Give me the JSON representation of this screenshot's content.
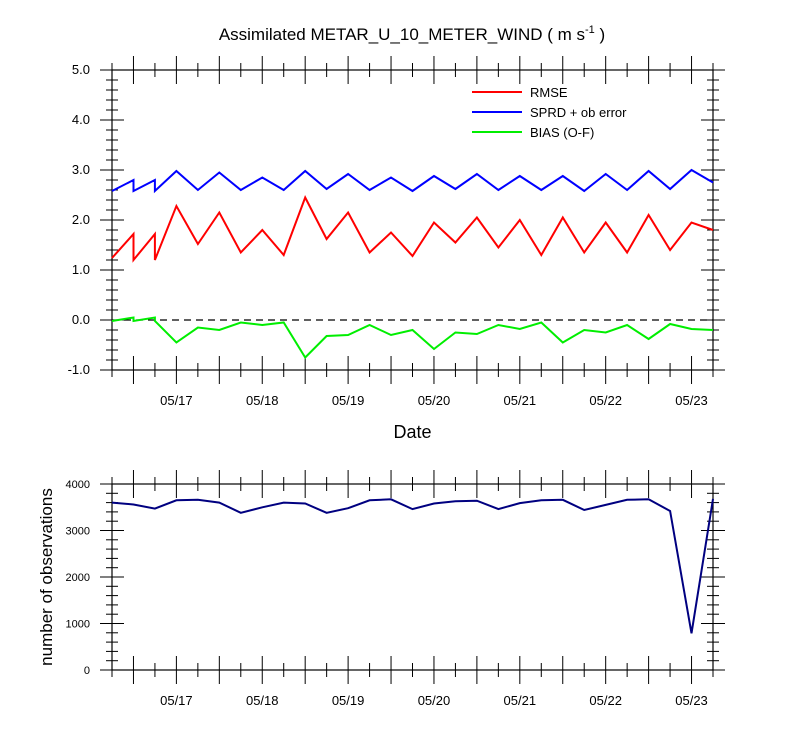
{
  "chart_data": [
    {
      "type": "line",
      "title": "Assimilated METAR_U_10_METER_WIND ( m s",
      "title_superscript": "-1",
      "title_close": " )",
      "xlabel": "Date",
      "ylabel": "",
      "ylim": [
        -1,
        5
      ],
      "yticks": [
        "-1.0",
        "0.0",
        "1.0",
        "2.0",
        "3.0",
        "4.0",
        "5.0"
      ],
      "xticks": [
        "05/17",
        "05/18",
        "05/19",
        "05/20",
        "05/21",
        "05/22",
        "05/23"
      ],
      "xlim": [
        "05/16 06:00",
        "05/23 06:00"
      ],
      "zero_line": {
        "value": 0,
        "style": "dashed"
      },
      "legend_position": "top-right",
      "x": [
        "05/16 06:00",
        "05/16 12:00",
        "05/16 12:00",
        "05/16 18:00",
        "05/16 18:00",
        "05/17 00:00",
        "05/17 06:00",
        "05/17 06:00",
        "05/17 12:00",
        "05/17 18:00",
        "05/17 18:00",
        "05/18 00:00",
        "05/18 06:00",
        "05/18 06:00",
        "05/18 12:00",
        "05/18 18:00",
        "05/18 18:00",
        "05/19 00:00",
        "05/19 06:00",
        "05/19 06:00",
        "05/19 12:00",
        "05/19 18:00",
        "05/19 18:00",
        "05/20 00:00",
        "05/20 06:00",
        "05/20 06:00",
        "05/20 12:00",
        "05/20 18:00",
        "05/20 18:00",
        "05/21 00:00",
        "05/21 06:00",
        "05/21 06:00",
        "05/21 12:00",
        "05/21 18:00",
        "05/21 18:00",
        "05/22 00:00",
        "05/22 06:00",
        "05/22 06:00",
        "05/22 12:00",
        "05/22 18:00",
        "05/22 18:00",
        "05/23 00:00",
        "05/23 06:00"
      ],
      "series": [
        {
          "name": "RMSE",
          "color": "#ff0000",
          "values": [
            1.24,
            1.72,
            1.2,
            1.72,
            1.2,
            2.28,
            1.52,
            1.52,
            2.15,
            1.35,
            1.35,
            1.8,
            1.3,
            1.3,
            2.45,
            1.62,
            1.62,
            2.15,
            1.35,
            1.35,
            1.75,
            1.28,
            1.28,
            1.95,
            1.55,
            1.55,
            2.05,
            1.45,
            1.45,
            2.0,
            1.3,
            1.3,
            2.05,
            1.35,
            1.35,
            1.95,
            1.35,
            1.35,
            2.1,
            1.4,
            1.4,
            1.95,
            1.8
          ]
        },
        {
          "name": "SPRD + ob error",
          "color": "#0000ff",
          "values": [
            2.58,
            2.8,
            2.58,
            2.8,
            2.58,
            2.98,
            2.6,
            2.6,
            2.95,
            2.6,
            2.6,
            2.85,
            2.6,
            2.6,
            2.98,
            2.62,
            2.62,
            2.92,
            2.6,
            2.6,
            2.85,
            2.58,
            2.58,
            2.88,
            2.62,
            2.62,
            2.92,
            2.6,
            2.6,
            2.88,
            2.6,
            2.6,
            2.88,
            2.58,
            2.58,
            2.92,
            2.6,
            2.6,
            2.98,
            2.62,
            2.62,
            3.0,
            2.75
          ]
        },
        {
          "name": "BIAS (O-F)",
          "color": "#00ee00",
          "values": [
            -0.02,
            0.05,
            -0.02,
            0.05,
            -0.02,
            -0.45,
            -0.15,
            -0.15,
            -0.2,
            -0.05,
            -0.05,
            -0.1,
            -0.05,
            -0.05,
            -0.75,
            -0.32,
            -0.32,
            -0.3,
            -0.1,
            -0.1,
            -0.3,
            -0.2,
            -0.2,
            -0.58,
            -0.25,
            -0.25,
            -0.28,
            -0.1,
            -0.1,
            -0.18,
            -0.05,
            -0.05,
            -0.45,
            -0.2,
            -0.2,
            -0.25,
            -0.1,
            -0.1,
            -0.38,
            -0.08,
            -0.08,
            -0.18,
            -0.2
          ]
        }
      ]
    },
    {
      "type": "line",
      "title": "",
      "xlabel": "",
      "ylabel": "number of observations",
      "ylim": [
        0,
        4000
      ],
      "yticks": [
        "0",
        "1000",
        "2000",
        "3000",
        "4000"
      ],
      "xticks": [
        "05/17",
        "05/18",
        "05/19",
        "05/20",
        "05/21",
        "05/22",
        "05/23"
      ],
      "xlim": [
        "05/16 06:00",
        "05/23 06:00"
      ],
      "x": [
        "05/16 06:00",
        "05/16 12:00",
        "05/16 18:00",
        "05/17 00:00",
        "05/17 06:00",
        "05/17 12:00",
        "05/17 18:00",
        "05/18 00:00",
        "05/18 06:00",
        "05/18 12:00",
        "05/18 18:00",
        "05/19 00:00",
        "05/19 06:00",
        "05/19 12:00",
        "05/19 18:00",
        "05/20 00:00",
        "05/20 06:00",
        "05/20 12:00",
        "05/20 18:00",
        "05/21 00:00",
        "05/21 06:00",
        "05/21 12:00",
        "05/21 18:00",
        "05/22 00:00",
        "05/22 06:00",
        "05/22 12:00",
        "05/22 18:00",
        "05/23 00:00",
        "05/23 06:00"
      ],
      "series": [
        {
          "color": "#000080",
          "values": [
            3600,
            3560,
            3470,
            3650,
            3660,
            3600,
            3380,
            3500,
            3600,
            3580,
            3380,
            3480,
            3650,
            3670,
            3460,
            3580,
            3630,
            3640,
            3460,
            3590,
            3650,
            3660,
            3440,
            3550,
            3660,
            3670,
            3420,
            790,
            3680
          ]
        }
      ]
    }
  ]
}
